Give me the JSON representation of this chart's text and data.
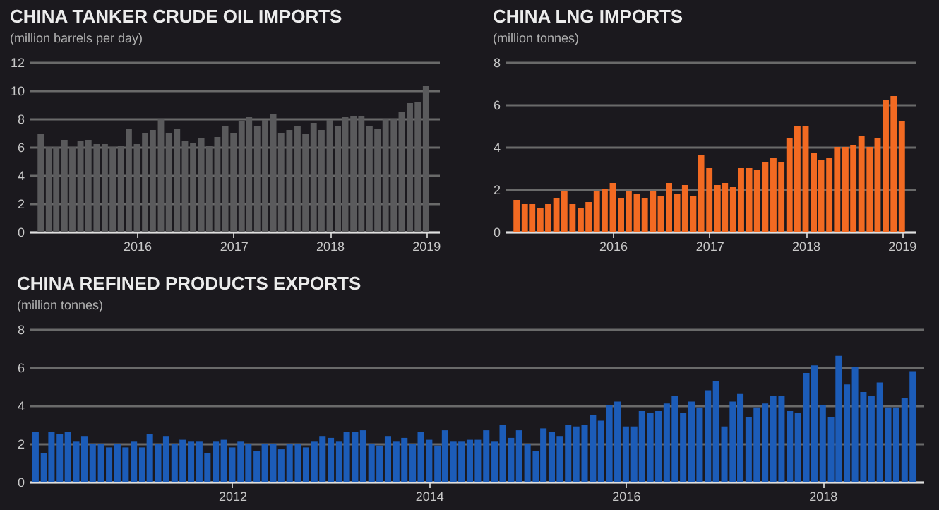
{
  "chart_data": [
    {
      "type": "bar",
      "title": "CHINA TANKER CRUDE OIL IMPORTS",
      "subtitle": "(million barrels per day)",
      "color": "#5a5a5c",
      "grid": "y",
      "x": [
        "2015-01",
        "2015-02",
        "2015-03",
        "2015-04",
        "2015-05",
        "2015-06",
        "2015-07",
        "2015-08",
        "2015-09",
        "2015-10",
        "2015-11",
        "2015-12",
        "2016-01",
        "2016-02",
        "2016-03",
        "2016-04",
        "2016-05",
        "2016-06",
        "2016-07",
        "2016-08",
        "2016-09",
        "2016-10",
        "2016-11",
        "2016-12",
        "2017-01",
        "2017-02",
        "2017-03",
        "2017-04",
        "2017-05",
        "2017-06",
        "2017-07",
        "2017-08",
        "2017-09",
        "2017-10",
        "2017-11",
        "2017-12",
        "2018-01",
        "2018-02",
        "2018-03",
        "2018-04",
        "2018-05",
        "2018-06",
        "2018-07",
        "2018-08",
        "2018-09",
        "2018-10",
        "2018-11",
        "2018-12",
        "2019-01"
      ],
      "values": [
        6.9,
        6.0,
        6.0,
        6.5,
        6.0,
        6.4,
        6.5,
        6.2,
        6.2,
        6.0,
        6.1,
        7.3,
        6.2,
        7.0,
        7.2,
        8.0,
        7.0,
        7.3,
        6.4,
        6.3,
        6.6,
        6.1,
        6.7,
        7.5,
        7.0,
        7.8,
        8.1,
        7.5,
        7.9,
        8.3,
        7.0,
        7.2,
        7.5,
        6.9,
        7.7,
        7.2,
        7.9,
        7.5,
        8.1,
        8.2,
        8.2,
        7.5,
        7.3,
        8.0,
        8.0,
        8.5,
        9.1,
        9.2,
        10.3
      ],
      "xlim": [
        "2014-11-20",
        "2019-02-20"
      ],
      "xticks": [
        "2016",
        "2017",
        "2018",
        "2019"
      ],
      "ylim": [
        0,
        12
      ],
      "yticks": [
        0,
        2,
        4,
        6,
        8,
        10,
        12
      ]
    },
    {
      "type": "bar",
      "title": "CHINA LNG IMPORTS",
      "subtitle": "(million tonnes)",
      "color": "#f26a22",
      "grid": "y",
      "x": [
        "2015-01",
        "2015-02",
        "2015-03",
        "2015-04",
        "2015-05",
        "2015-06",
        "2015-07",
        "2015-08",
        "2015-09",
        "2015-10",
        "2015-11",
        "2015-12",
        "2016-01",
        "2016-02",
        "2016-03",
        "2016-04",
        "2016-05",
        "2016-06",
        "2016-07",
        "2016-08",
        "2016-09",
        "2016-10",
        "2016-11",
        "2016-12",
        "2017-01",
        "2017-02",
        "2017-03",
        "2017-04",
        "2017-05",
        "2017-06",
        "2017-07",
        "2017-08",
        "2017-09",
        "2017-10",
        "2017-11",
        "2017-12",
        "2018-01",
        "2018-02",
        "2018-03",
        "2018-04",
        "2018-05",
        "2018-06",
        "2018-07",
        "2018-08",
        "2018-09",
        "2018-10",
        "2018-11",
        "2018-12",
        "2019-01"
      ],
      "values": [
        1.5,
        1.3,
        1.3,
        1.1,
        1.3,
        1.6,
        1.9,
        1.3,
        1.1,
        1.4,
        1.9,
        2.0,
        2.3,
        1.6,
        1.9,
        1.8,
        1.6,
        1.9,
        1.7,
        2.3,
        1.8,
        2.2,
        1.7,
        3.6,
        3.0,
        2.2,
        2.3,
        2.1,
        3.0,
        3.0,
        2.9,
        3.3,
        3.5,
        3.3,
        4.4,
        5.0,
        5.0,
        3.7,
        3.4,
        3.5,
        4.0,
        4.0,
        4.1,
        4.5,
        4.0,
        4.4,
        6.2,
        6.4,
        5.2
      ],
      "xlim": [
        "2014-11-20",
        "2019-02-20"
      ],
      "xticks": [
        "2016",
        "2017",
        "2018",
        "2019"
      ],
      "ylim": [
        0,
        8
      ],
      "yticks": [
        0,
        2,
        4,
        6,
        8
      ]
    },
    {
      "type": "bar",
      "title": "CHINA REFINED PRODUCTS EXPORTS",
      "subtitle": "(million tonnes)",
      "color": "#1c5cb8",
      "grid": "y",
      "x": [
        "2010-01",
        "2010-02",
        "2010-03",
        "2010-04",
        "2010-05",
        "2010-06",
        "2010-07",
        "2010-08",
        "2010-09",
        "2010-10",
        "2010-11",
        "2010-12",
        "2011-01",
        "2011-02",
        "2011-03",
        "2011-04",
        "2011-05",
        "2011-06",
        "2011-07",
        "2011-08",
        "2011-09",
        "2011-10",
        "2011-11",
        "2011-12",
        "2012-01",
        "2012-02",
        "2012-03",
        "2012-04",
        "2012-05",
        "2012-06",
        "2012-07",
        "2012-08",
        "2012-09",
        "2012-10",
        "2012-11",
        "2012-12",
        "2013-01",
        "2013-02",
        "2013-03",
        "2013-04",
        "2013-05",
        "2013-06",
        "2013-07",
        "2013-08",
        "2013-09",
        "2013-10",
        "2013-11",
        "2013-12",
        "2014-01",
        "2014-02",
        "2014-03",
        "2014-04",
        "2014-05",
        "2014-06",
        "2014-07",
        "2014-08",
        "2014-09",
        "2014-10",
        "2014-11",
        "2014-12",
        "2015-01",
        "2015-02",
        "2015-03",
        "2015-04",
        "2015-05",
        "2015-06",
        "2015-07",
        "2015-08",
        "2015-09",
        "2015-10",
        "2015-11",
        "2015-12",
        "2016-01",
        "2016-02",
        "2016-03",
        "2016-04",
        "2016-05",
        "2016-06",
        "2016-07",
        "2016-08",
        "2016-09",
        "2016-10",
        "2016-11",
        "2016-12",
        "2017-01",
        "2017-02",
        "2017-03",
        "2017-04",
        "2017-05",
        "2017-06",
        "2017-07",
        "2017-08",
        "2017-09",
        "2017-10",
        "2017-11",
        "2017-12",
        "2018-01",
        "2018-02",
        "2018-03",
        "2018-04",
        "2018-05",
        "2018-06",
        "2018-07",
        "2018-08",
        "2018-09",
        "2018-10",
        "2018-11",
        "2018-12"
      ],
      "values": [
        2.6,
        1.5,
        2.6,
        2.5,
        2.6,
        2.1,
        2.4,
        2.0,
        2.0,
        1.8,
        2.0,
        1.8,
        2.1,
        1.8,
        2.5,
        2.0,
        2.4,
        2.0,
        2.2,
        2.1,
        2.1,
        1.5,
        2.1,
        2.2,
        1.8,
        2.1,
        2.0,
        1.6,
        2.0,
        2.0,
        1.7,
        2.0,
        2.0,
        1.8,
        2.1,
        2.4,
        2.3,
        2.1,
        2.6,
        2.6,
        2.7,
        2.0,
        1.9,
        2.4,
        2.1,
        2.3,
        2.0,
        2.6,
        2.2,
        1.9,
        2.7,
        2.1,
        2.1,
        2.2,
        2.2,
        2.7,
        2.1,
        3.0,
        2.3,
        2.7,
        2.0,
        1.6,
        2.8,
        2.6,
        2.4,
        3.0,
        2.9,
        3.0,
        3.5,
        3.2,
        4.0,
        4.2,
        2.9,
        2.9,
        3.7,
        3.6,
        3.7,
        4.1,
        4.5,
        3.6,
        4.2,
        3.9,
        4.8,
        5.3,
        2.9,
        4.2,
        4.6,
        3.4,
        3.9,
        4.1,
        4.5,
        4.5,
        3.7,
        3.6,
        5.7,
        6.1,
        4.0,
        3.4,
        6.6,
        5.1,
        6.0,
        4.7,
        4.5,
        5.2,
        3.9,
        3.9,
        4.4,
        5.8
      ],
      "xlim": [
        "2009-12-10",
        "2019-01-10"
      ],
      "xticks": [
        "2012",
        "2014",
        "2016",
        "2018"
      ],
      "ylim": [
        0,
        8
      ],
      "yticks": [
        0,
        2,
        4,
        6,
        8
      ]
    }
  ]
}
